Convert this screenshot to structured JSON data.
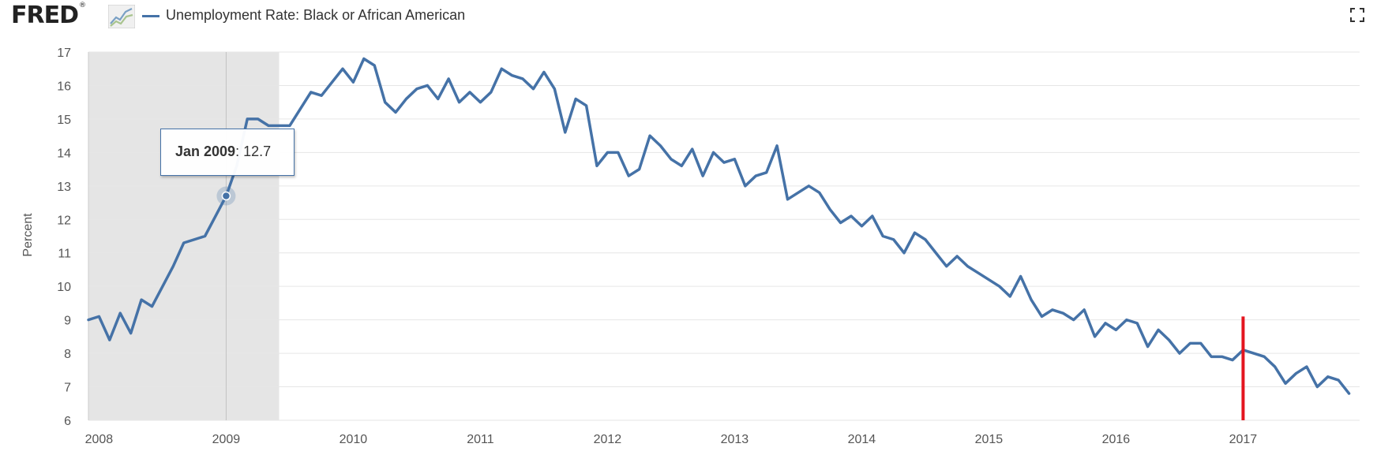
{
  "header": {
    "logo_text": "FRED",
    "logo_mark_symbol": "®",
    "series_title": "Unemployment Rate: Black or African American",
    "fullscreen_icon": "fullscreen-icon"
  },
  "tooltip": {
    "date": "Jan 2009",
    "value": "12.7"
  },
  "colors": {
    "series": "#4572a7",
    "recession": "#e5e5e5",
    "marker_line": "#e4151f",
    "grid": "#e6e6e6"
  },
  "chart_data": {
    "type": "line",
    "ylabel": "Percent",
    "ylim": [
      6,
      17
    ],
    "xlim": [
      "2007-12",
      "2017-12"
    ],
    "yticks": [
      6,
      7,
      8,
      9,
      10,
      11,
      12,
      13,
      14,
      15,
      16,
      17
    ],
    "xticks": [
      "2008",
      "2009",
      "2010",
      "2011",
      "2012",
      "2013",
      "2014",
      "2015",
      "2016",
      "2017"
    ],
    "grid": true,
    "recession": {
      "start": "2007-12",
      "end": "2009-06"
    },
    "crosshair": "2009-01",
    "highlight_point": {
      "date": "2009-01",
      "value": 12.7
    },
    "vertical_marker": {
      "date": "2017-01",
      "from": 6,
      "to": 9.1
    },
    "series": [
      {
        "name": "Unemployment Rate: Black or African American",
        "start": "2007-12",
        "frequency": "monthly",
        "values": [
          9.0,
          9.1,
          8.4,
          9.2,
          8.6,
          9.6,
          9.4,
          10.0,
          10.6,
          11.3,
          11.4,
          11.5,
          12.1,
          12.7,
          13.6,
          15.0,
          15.0,
          14.8,
          14.8,
          14.8,
          15.3,
          15.8,
          15.7,
          16.1,
          16.5,
          16.1,
          16.8,
          16.6,
          15.5,
          15.2,
          15.6,
          15.9,
          16.0,
          15.6,
          16.2,
          15.5,
          15.8,
          15.5,
          15.8,
          16.5,
          16.3,
          16.2,
          15.9,
          16.4,
          15.9,
          14.6,
          15.6,
          15.4,
          13.6,
          14.0,
          14.0,
          13.3,
          13.5,
          14.5,
          14.2,
          13.8,
          13.6,
          14.1,
          13.3,
          14.0,
          13.7,
          13.8,
          13.0,
          13.3,
          13.4,
          14.2,
          12.6,
          12.8,
          13.0,
          12.8,
          12.3,
          11.9,
          12.1,
          11.8,
          12.1,
          11.5,
          11.4,
          11.0,
          11.6,
          11.4,
          11.0,
          10.6,
          10.9,
          10.6,
          10.4,
          10.2,
          10.0,
          9.7,
          10.3,
          9.6,
          9.1,
          9.3,
          9.2,
          9.0,
          9.3,
          8.5,
          8.9,
          8.7,
          9.0,
          8.9,
          8.2,
          8.7,
          8.4,
          8.0,
          8.3,
          8.3,
          7.9,
          7.9,
          7.8,
          8.1,
          8.0,
          7.9,
          7.6,
          7.1,
          7.4,
          7.6,
          7.0,
          7.3,
          7.2,
          6.8
        ]
      }
    ]
  }
}
